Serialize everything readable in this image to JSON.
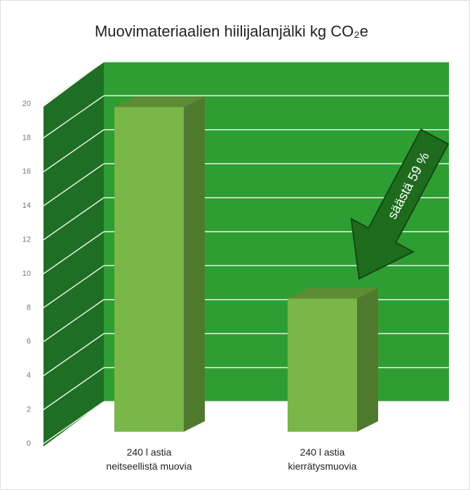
{
  "chart_data": {
    "type": "bar3d",
    "title": "Muovimateriaalien hiilijalanjälki kg CO₂e",
    "categories": [
      "240 l astia\nneitseellistä muovia",
      "240 l astia\nkierrätysmuovia"
    ],
    "values": [
      19.5,
      8
    ],
    "color": "#7ab648",
    "ylim": [
      0,
      20
    ],
    "yticks": [
      0,
      2,
      4,
      6,
      8,
      10,
      12,
      14,
      16,
      18,
      20
    ],
    "grid": true,
    "annotation": "säästä 59 %"
  }
}
